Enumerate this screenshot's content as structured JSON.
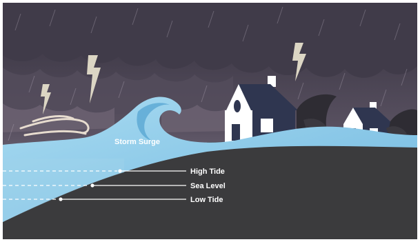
{
  "labels": {
    "storm_surge": "Storm Surge",
    "high_tide": "High Tide",
    "sea_level": "Sea Level",
    "low_tide": "Low Tide"
  },
  "colors": {
    "sky_top": "#3a3644",
    "sky_bottom": "#8a7f90",
    "cloud": "#45404f",
    "ground": "#3a3a3c",
    "water": "#8fcbe8",
    "water_dark": "#4f9ec9",
    "house_roof": "#2e3650",
    "house_wall": "#ffffff",
    "lightning": "#d8d2c0",
    "tree": "#2e2c33"
  }
}
